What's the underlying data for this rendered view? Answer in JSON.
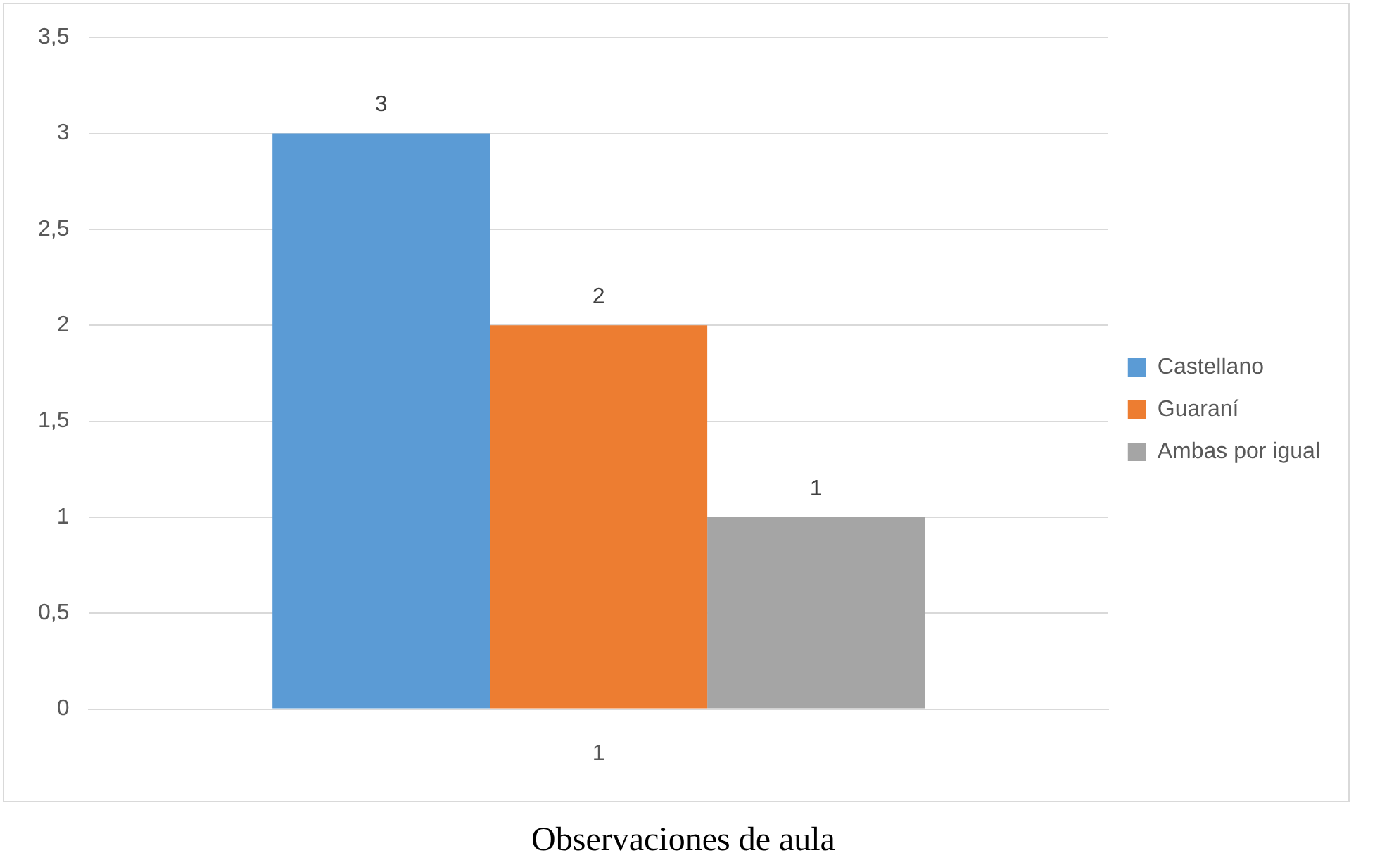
{
  "chart_data": {
    "type": "bar",
    "categories": [
      "1"
    ],
    "series": [
      {
        "name": "Castellano",
        "color": "#5b9bd5",
        "values": [
          3
        ]
      },
      {
        "name": "Guaraní",
        "color": "#ed7d31",
        "values": [
          2
        ]
      },
      {
        "name": "Ambas por igual",
        "color": "#a5a5a5",
        "values": [
          1
        ]
      }
    ],
    "ylim": [
      0,
      3.5
    ],
    "yticks": [
      0,
      {
        "value": 0.5,
        "label": "0,5"
      },
      1,
      {
        "value": 1.5,
        "label": "1,5"
      },
      2,
      {
        "value": 2.5,
        "label": "2,5"
      },
      3,
      {
        "value": 3.5,
        "label": "3,5"
      }
    ],
    "grid": "y",
    "legend": "right",
    "data_labels": true,
    "annotations": [
      "Observaciones de aula"
    ]
  }
}
